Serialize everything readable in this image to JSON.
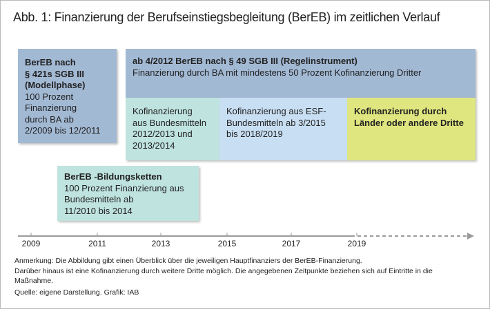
{
  "header": {
    "title": "Abb. 1: Finanzierung der Berufseinstiegsbegleitung (BerEB) im zeitlichen Verlauf"
  },
  "boxes": [
    {
      "heading": [
        "BerEB nach",
        "§ 421s SGB III",
        "(Modellphase)"
      ],
      "body": [
        "100 Prozent",
        "Finanzierung",
        "durch BA ab",
        "2/2009 bis 12/2011"
      ]
    },
    {
      "heading": [
        "ab 4/2012 BerEB nach § 49 SGB III (Regelinstrument)"
      ],
      "body": [
        "Finanzierung durch BA mit mindestens 50 Prozent Kofinanzierung Dritter"
      ]
    },
    {
      "heading": [],
      "body": [
        "Kofinanzierung",
        "aus Bundesmitteln",
        "2012/2013 und",
        "2013/2014"
      ]
    },
    {
      "heading": [],
      "body": [
        "Kofinanzierung aus ESF-",
        "Bundesmitteln ab 3/2015",
        "bis 2018/2019"
      ]
    },
    {
      "heading": [
        "Kofinanzierung durch",
        "Länder oder andere Dritte"
      ],
      "body": []
    },
    {
      "heading": [
        "BerEB -Bildungsketten"
      ],
      "body": [
        "100 Prozent Finanzierung aus",
        "Bundesmitteln ab",
        "11/2010 bis 2014"
      ]
    }
  ],
  "timeline": {
    "labels": [
      "2009",
      "2011",
      "2013",
      "2015",
      "2017",
      "2019"
    ]
  },
  "notes": [
    "Anmerkung: Die Abbildung gibt einen Überblick über die jeweiligen Hauptfinanziers der BerEB-Finanzierung.",
    "Darüber hinaus ist eine Kofinanzierung durch weitere Dritte möglich. Die angegebenen Zeitpunkte beziehen sich auf Eintritte in die",
    "Maßnahme.",
    "Quelle: eigene Darstellung. Grafik: IAB"
  ]
}
